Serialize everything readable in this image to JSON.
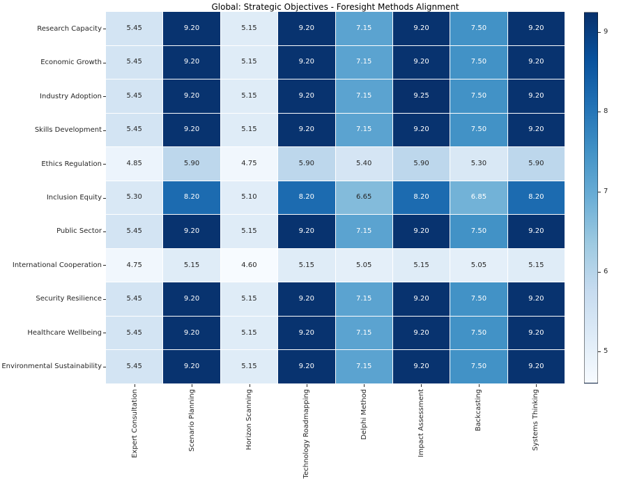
{
  "chart_data": {
    "type": "heatmap",
    "title": "Global: Strategic Objectives - Foresight Methods Alignment",
    "rows": [
      "Research Capacity",
      "Economic Growth",
      "Industry Adoption",
      "Skills Development",
      "Ethics Regulation",
      "Inclusion Equity",
      "Public Sector",
      "International Cooperation",
      "Security Resilience",
      "Healthcare Wellbeing",
      "Environmental Sustainability"
    ],
    "columns": [
      "Expert Consultation",
      "Scenario Planning",
      "Horizon Scanning",
      "Technology Roadmapping",
      "Delphi Method",
      "Impact Assessment",
      "Backcasting",
      "Systems Thinking"
    ],
    "values": [
      [
        5.45,
        9.2,
        5.15,
        9.2,
        7.15,
        9.2,
        7.5,
        9.2
      ],
      [
        5.45,
        9.2,
        5.15,
        9.2,
        7.15,
        9.2,
        7.5,
        9.2
      ],
      [
        5.45,
        9.2,
        5.15,
        9.2,
        7.15,
        9.25,
        7.5,
        9.2
      ],
      [
        5.45,
        9.2,
        5.15,
        9.2,
        7.15,
        9.2,
        7.5,
        9.2
      ],
      [
        4.85,
        5.9,
        4.75,
        5.9,
        5.4,
        5.9,
        5.3,
        5.9
      ],
      [
        5.3,
        8.2,
        5.1,
        8.2,
        6.65,
        8.2,
        6.85,
        8.2
      ],
      [
        5.45,
        9.2,
        5.15,
        9.2,
        7.15,
        9.2,
        7.5,
        9.2
      ],
      [
        4.75,
        5.15,
        4.6,
        5.15,
        5.05,
        5.15,
        5.05,
        5.15
      ],
      [
        5.45,
        9.2,
        5.15,
        9.2,
        7.15,
        9.2,
        7.5,
        9.2
      ],
      [
        5.45,
        9.2,
        5.15,
        9.2,
        7.15,
        9.2,
        7.5,
        9.2
      ],
      [
        5.45,
        9.2,
        5.15,
        9.2,
        7.15,
        9.2,
        7.5,
        9.2
      ]
    ],
    "vmin": 4.6,
    "vmax": 9.25,
    "annotation_decimals": 2,
    "colormap": "Blues",
    "colormap_stops": [
      "#f7fbff",
      "#deebf7",
      "#c6dbef",
      "#9ecae1",
      "#6baed6",
      "#4292c6",
      "#2171b5",
      "#08519c",
      "#08306b"
    ],
    "colorbar_ticks": [
      5,
      6,
      7,
      8,
      9
    ],
    "colorbar_position": "right",
    "grid_line_color": "#ffffff",
    "annotation_dark_color": "#262626",
    "annotation_light_color": "#ffffff",
    "xlabel": "",
    "ylabel": ""
  }
}
